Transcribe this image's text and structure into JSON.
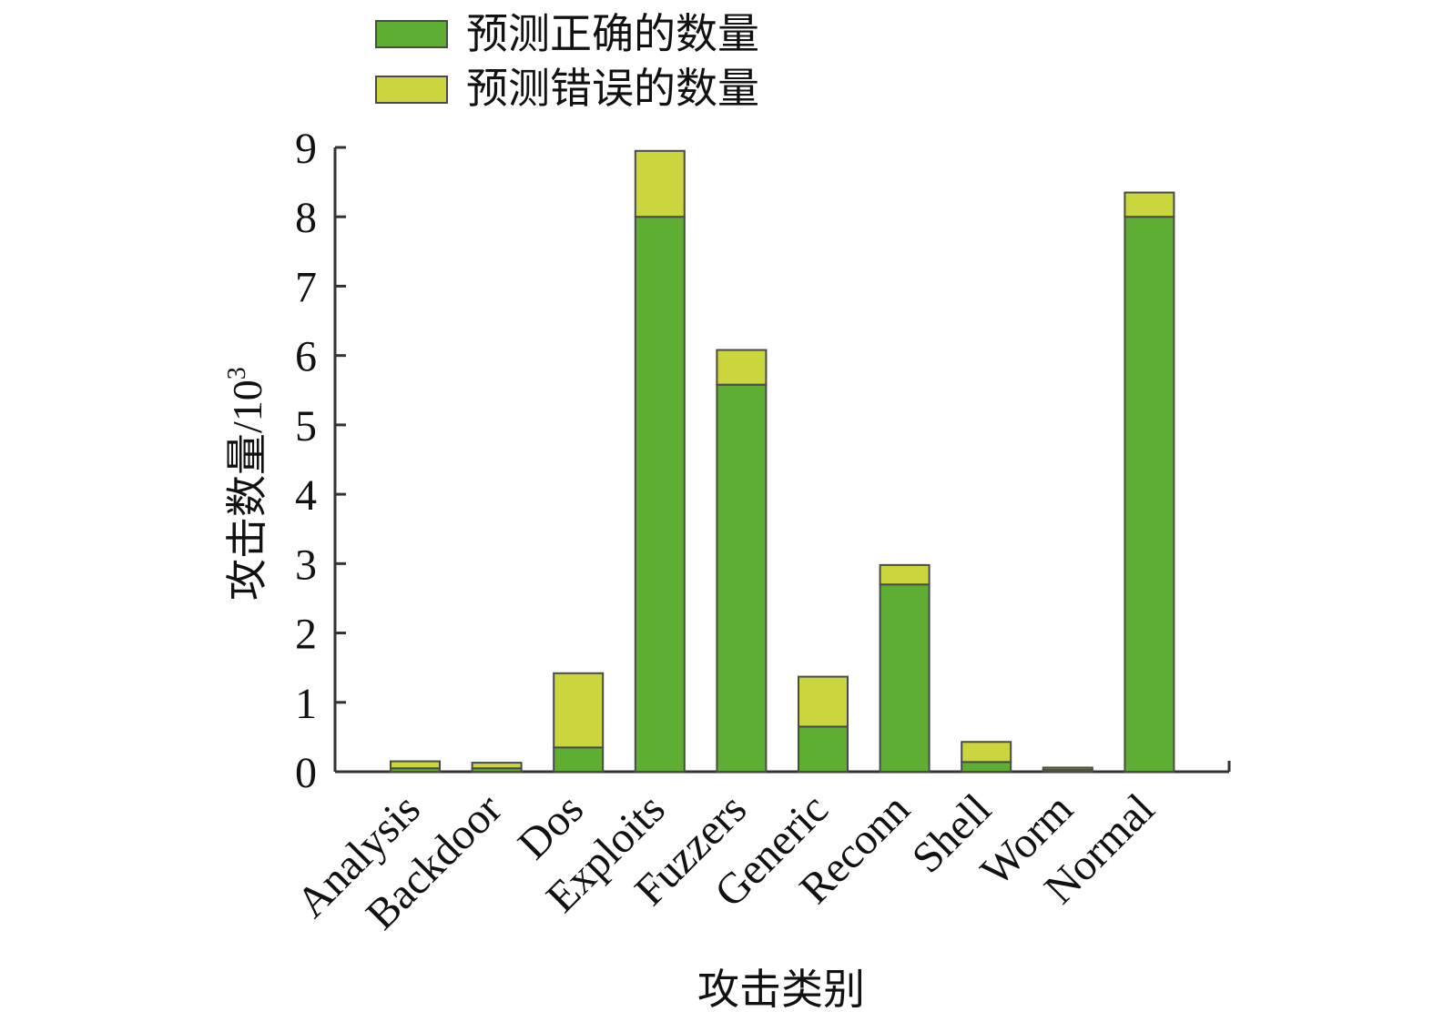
{
  "chart_data": {
    "type": "bar",
    "stacked": true,
    "categories": [
      "Analysis",
      "Backdoor",
      "Dos",
      "Exploits",
      "Fuzzers",
      "Generic",
      "Reconn",
      "Shell",
      "Worm",
      "Normal"
    ],
    "series": [
      {
        "name": "预测正确的数量",
        "color": "#5fae34",
        "values": [
          0.05,
          0.05,
          0.35,
          8.0,
          5.58,
          0.65,
          2.7,
          0.14,
          0.03,
          8.0
        ]
      },
      {
        "name": "预测错误的数量",
        "color": "#cbd53e",
        "values": [
          0.1,
          0.08,
          1.07,
          0.95,
          0.5,
          0.72,
          0.28,
          0.29,
          0.03,
          0.35
        ]
      }
    ],
    "xlabel": "攻击类别",
    "ylabel": "攻击数量/10",
    "ylabel_superscript": "3",
    "yticks": [
      "0",
      "1",
      "2",
      "3",
      "4",
      "5",
      "6",
      "7",
      "8",
      "9"
    ],
    "ylim": [
      0,
      9
    ],
    "grid": false,
    "legend_position": "top"
  }
}
